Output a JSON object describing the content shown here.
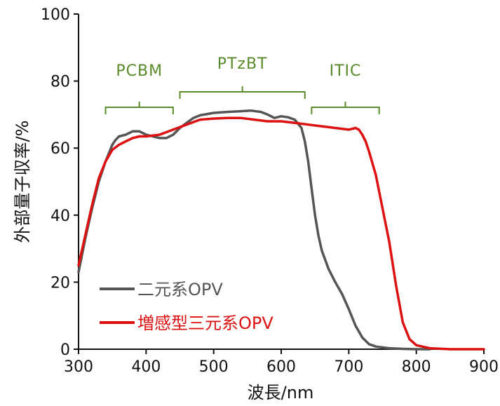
{
  "chart_data": {
    "type": "line",
    "xlabel": "波長/nm",
    "ylabel": "外部量子収率/%",
    "xlim": [
      300,
      900
    ],
    "ylim": [
      0,
      100
    ],
    "xticks": [
      300,
      400,
      500,
      600,
      700,
      800,
      900
    ],
    "yticks": [
      0,
      20,
      40,
      60,
      80,
      100
    ],
    "grid": false,
    "legend_position": "bottom-left",
    "series": [
      {
        "name": "二元系OPV",
        "color": "#555555",
        "x": [
          300,
          310,
          320,
          330,
          340,
          350,
          355,
          360,
          370,
          380,
          390,
          400,
          410,
          420,
          430,
          440,
          450,
          460,
          470,
          480,
          500,
          520,
          540,
          555,
          570,
          580,
          590,
          600,
          610,
          620,
          630,
          635,
          640,
          645,
          650,
          655,
          660,
          670,
          680,
          690,
          700,
          710,
          720,
          730,
          740,
          760,
          780,
          800,
          820
        ],
        "y": [
          23,
          33,
          42,
          50,
          56,
          61,
          62.5,
          63.5,
          64,
          65,
          65,
          64,
          63.5,
          63,
          63,
          64,
          66,
          67.5,
          69,
          69.8,
          70.5,
          70.8,
          71,
          71.2,
          70.8,
          70,
          69,
          69.5,
          69.2,
          68.5,
          66,
          62,
          56,
          48,
          40,
          34,
          29.5,
          24,
          20,
          16.5,
          12,
          7,
          3.5,
          1.5,
          0.8,
          0.3,
          0.1,
          0,
          0
        ]
      },
      {
        "name": "増感型三元系OPV",
        "color": "#dd1111",
        "x": [
          300,
          310,
          320,
          330,
          340,
          350,
          360,
          370,
          380,
          390,
          400,
          420,
          440,
          460,
          480,
          500,
          520,
          540,
          560,
          580,
          600,
          620,
          640,
          660,
          680,
          700,
          710,
          715,
          720,
          725,
          730,
          740,
          750,
          760,
          770,
          780,
          790,
          800,
          820,
          850,
          880,
          900
        ],
        "y": [
          25,
          34,
          43,
          51,
          56,
          59.5,
          61,
          62,
          63,
          63.5,
          63.5,
          64,
          65.5,
          67,
          68.5,
          68.8,
          69,
          69,
          68.5,
          68,
          68,
          67.5,
          67,
          66.5,
          66,
          65.5,
          66,
          65.5,
          64,
          62,
          59,
          52,
          42,
          32,
          19,
          8,
          3,
          1.2,
          0.3,
          0,
          0,
          0
        ]
      }
    ],
    "annotations": [
      {
        "label": "PCBM",
        "range": [
          340,
          440
        ]
      },
      {
        "label": "PTzBT",
        "range": [
          450,
          635
        ]
      },
      {
        "label": "ITIC",
        "range": [
          645,
          745
        ]
      }
    ],
    "annotation_color": "#5a8a2a"
  }
}
